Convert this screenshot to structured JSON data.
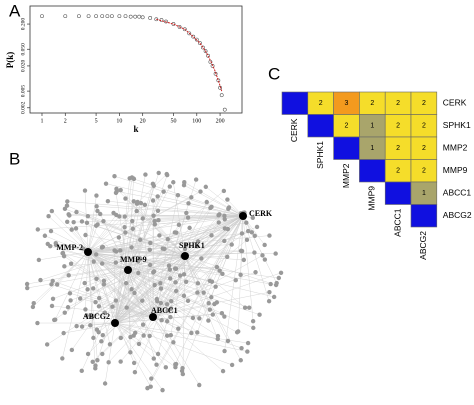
{
  "panels": {
    "a": "A",
    "b": "B",
    "c": "C"
  },
  "chart_data": {
    "type": "scatter",
    "x_label": "k",
    "y_label": "P(k)",
    "log_x": true,
    "log_y": true,
    "xlim": [
      0.7,
      384
    ],
    "ylim": [
      0.0015,
      0.54
    ],
    "xticks": [
      1,
      2,
      5,
      10,
      20,
      50,
      100,
      200
    ],
    "yticks": [
      {
        "value": 0.002,
        "label": "0.002"
      },
      {
        "value": 0.005,
        "label": "0.005"
      },
      {
        "value": 0.02,
        "label": "0.020"
      },
      {
        "value": 0.05,
        "label": "0.050"
      },
      {
        "value": 0.2,
        "label": "0.200"
      }
    ],
    "series": [
      {
        "color": "#555555",
        "x": [
          1,
          2,
          3,
          4,
          5,
          6,
          7,
          8,
          10,
          12,
          14,
          16,
          18,
          20,
          25,
          30,
          35,
          40,
          50,
          60,
          70,
          80,
          90,
          100,
          110,
          120,
          130,
          140,
          150,
          160,
          175,
          190,
          200,
          210,
          230
        ],
        "values": [
          0.31,
          0.31,
          0.31,
          0.31,
          0.31,
          0.31,
          0.31,
          0.31,
          0.31,
          0.31,
          0.3,
          0.3,
          0.3,
          0.29,
          0.28,
          0.26,
          0.25,
          0.23,
          0.2,
          0.17,
          0.15,
          0.12,
          0.1,
          0.085,
          0.07,
          0.055,
          0.045,
          0.035,
          0.025,
          0.02,
          0.013,
          0.009,
          0.006,
          0.004,
          0.0018
        ]
      },
      {
        "color": "#cc2222",
        "x": [
          30,
          50,
          70,
          90,
          110,
          130,
          150,
          170,
          190,
          210
        ],
        "values": [
          0.26,
          0.2,
          0.15,
          0.1,
          0.07,
          0.045,
          0.027,
          0.016,
          0.009,
          0.005
        ]
      }
    ]
  },
  "network": {
    "nodes": [
      "CERK",
      "MMP-2",
      "MMP-9",
      "SPHK1",
      "ABCG2",
      "ABCC1"
    ]
  },
  "matrix": {
    "labels": [
      "CERK",
      "SPHK1",
      "MMP2",
      "MMP9",
      "ABCC1",
      "ABCG2"
    ],
    "values": [
      [
        null,
        2,
        3,
        2,
        2,
        2
      ],
      [
        null,
        null,
        2,
        1,
        2,
        2
      ],
      [
        null,
        null,
        null,
        1,
        2,
        2
      ],
      [
        null,
        null,
        null,
        null,
        2,
        2
      ],
      [
        null,
        null,
        null,
        null,
        null,
        1
      ],
      [
        null,
        null,
        null,
        null,
        null,
        null
      ]
    ]
  }
}
